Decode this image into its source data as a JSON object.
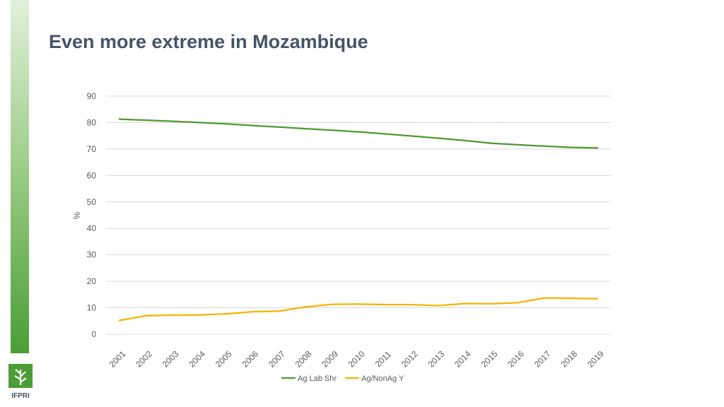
{
  "slide": {
    "title": "Even more extreme in Mozambique",
    "logo_text": "IFPRI"
  },
  "colors": {
    "title": "#44546a",
    "sidebar_top": "#e2f0dc",
    "sidebar_bottom": "#4a9e35",
    "grid": "#d9d9d9",
    "tick_text": "#595959"
  },
  "chart_data": {
    "type": "line",
    "title": "",
    "xlabel": "",
    "ylabel": "%",
    "ylim": [
      0,
      90
    ],
    "yticks": [
      0,
      10,
      20,
      30,
      40,
      50,
      60,
      70,
      80,
      90
    ],
    "grid": true,
    "legend_position": "bottom",
    "categories": [
      "2001",
      "2002",
      "2003",
      "2004",
      "2005",
      "2006",
      "2007",
      "2008",
      "2009",
      "2010",
      "2011",
      "2012",
      "2013",
      "2014",
      "2015",
      "2016",
      "2017",
      "2018",
      "2019"
    ],
    "series": [
      {
        "name": "Ag Lab Shr",
        "color": "#4e9a2f",
        "values": [
          81.3,
          80.9,
          80.5,
          80.0,
          79.5,
          78.9,
          78.3,
          77.7,
          77.1,
          76.5,
          75.7,
          74.9,
          74.1,
          73.2,
          72.2,
          71.6,
          71.1,
          70.6,
          70.4
        ]
      },
      {
        "name": "Ag/NonAg Y",
        "color": "#f5b400",
        "values": [
          5.2,
          7.0,
          7.2,
          7.3,
          7.7,
          8.5,
          8.7,
          10.3,
          11.3,
          11.4,
          11.2,
          11.2,
          10.8,
          11.6,
          11.5,
          11.9,
          13.7,
          13.6,
          13.4
        ]
      }
    ]
  }
}
